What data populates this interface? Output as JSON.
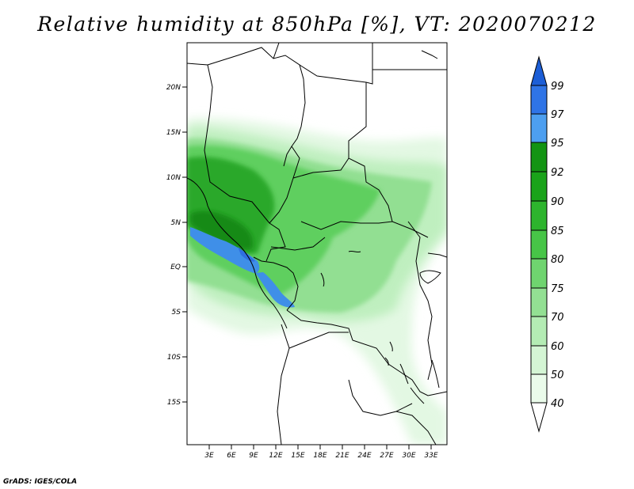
{
  "title": "Relative humidity at 850hPa [%], VT: 2020070212",
  "credit": "GrADS: IGES/COLA",
  "map": {
    "lat_labels": [
      "20N",
      "15N",
      "10N",
      "5N",
      "EQ",
      "5S",
      "10S",
      "15S"
    ],
    "lon_labels": [
      "3E",
      "6E",
      "9E",
      "12E",
      "15E",
      "18E",
      "21E",
      "24E",
      "27E",
      "30E",
      "33E"
    ]
  },
  "colorbar": {
    "levels": [
      "99",
      "97",
      "95",
      "92",
      "90",
      "85",
      "80",
      "75",
      "70",
      "60",
      "50",
      "40"
    ],
    "colors": [
      "#1c5ed6",
      "#2f74e6",
      "#4d9ff0",
      "#139413",
      "#1aa31a",
      "#2db42d",
      "#47c547",
      "#6fd46f",
      "#93e093",
      "#b4ecb4",
      "#d4f5d4",
      "#eafbea",
      "#ffffff"
    ]
  }
}
